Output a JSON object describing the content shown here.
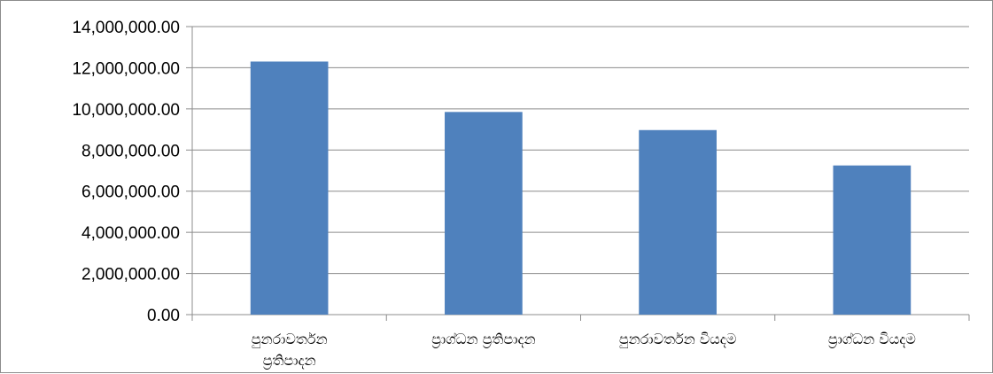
{
  "chart_data": {
    "type": "bar",
    "title": "",
    "xlabel": "",
    "ylabel": "",
    "categories": [
      [
        "පුනරාවර්තන",
        "ප්‍රතිපාදන"
      ],
      [
        "ප්‍රාග්ධන ප්‍රතිපාදන"
      ],
      [
        "පුනරාවර්තන වියදම"
      ],
      [
        "ප්‍රාග්ධන වියදම"
      ]
    ],
    "series": [
      {
        "values": [
          12300000,
          9850000,
          8970000,
          7250000
        ],
        "color": "#4F81BD"
      }
    ],
    "ylim": [
      0,
      14000000
    ],
    "yticks": [
      0,
      2000000,
      4000000,
      6000000,
      8000000,
      10000000,
      12000000,
      14000000
    ],
    "ytick_labels": [
      "0.00",
      "2,000,000.00",
      "4,000,000.00",
      "6,000,000.00",
      "8,000,000.00",
      "10,000,000.00",
      "12,000,000.00",
      "14,000,000.00"
    ],
    "grid": true,
    "legend": "none"
  }
}
